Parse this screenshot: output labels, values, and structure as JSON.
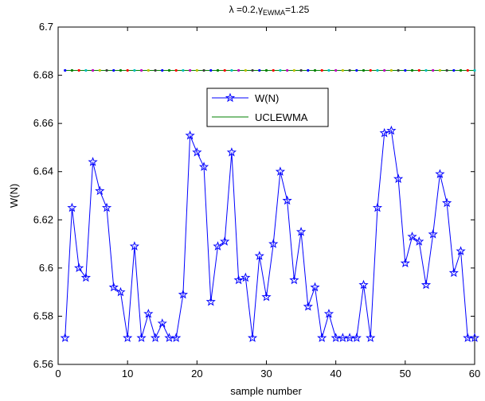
{
  "chart_data": {
    "type": "line",
    "title_parts": {
      "lambda_symbol": "λ",
      "lambda_value": " =0.2,",
      "gamma_symbol": "γ",
      "gamma_subscript": "EWMA",
      "gamma_value": "=1.25"
    },
    "xlabel": "sample number",
    "ylabel": "W(N)",
    "xlim": [
      0,
      60
    ],
    "ylim": [
      6.56,
      6.7
    ],
    "xticks": [
      0,
      10,
      20,
      30,
      40,
      50,
      60
    ],
    "xtick_labels": [
      "0",
      "10",
      "20",
      "30",
      "40",
      "50",
      "60"
    ],
    "yticks": [
      6.56,
      6.58,
      6.6,
      6.62,
      6.64,
      6.66,
      6.68,
      6.7
    ],
    "ytick_labels": [
      "6.56",
      "6.58",
      "6.6",
      "6.62",
      "6.64",
      "6.66",
      "6.68",
      "6.7"
    ],
    "grid": false,
    "legend_placement": "upper-center",
    "series": [
      {
        "name": "W(N)",
        "color": "#0000ff",
        "marker": "pentagram",
        "x": [
          1,
          2,
          3,
          4,
          5,
          6,
          7,
          8,
          9,
          10,
          11,
          12,
          13,
          14,
          15,
          16,
          17,
          18,
          19,
          20,
          21,
          22,
          23,
          24,
          25,
          26,
          27,
          28,
          29,
          30,
          31,
          32,
          33,
          34,
          35,
          36,
          37,
          38,
          39,
          40,
          41,
          42,
          43,
          44,
          45,
          46,
          47,
          48,
          49,
          50,
          51,
          52,
          53,
          54,
          55,
          56,
          57,
          58,
          59,
          60
        ],
        "values": [
          6.571,
          6.625,
          6.6,
          6.596,
          6.644,
          6.632,
          6.625,
          6.592,
          6.59,
          6.571,
          6.609,
          6.571,
          6.581,
          6.571,
          6.577,
          6.571,
          6.571,
          6.589,
          6.655,
          6.648,
          6.642,
          6.586,
          6.609,
          6.611,
          6.648,
          6.595,
          6.596,
          6.571,
          6.605,
          6.588,
          6.61,
          6.64,
          6.628,
          6.595,
          6.615,
          6.584,
          6.592,
          6.571,
          6.581,
          6.571,
          6.571,
          6.571,
          6.571,
          6.593,
          6.571,
          6.625,
          6.656,
          6.657,
          6.637,
          6.602,
          6.613,
          6.611,
          6.593,
          6.614,
          6.639,
          6.627,
          6.598,
          6.607,
          6.571,
          6.571
        ]
      },
      {
        "name": "UCLEWMA",
        "color": "#008000",
        "value": 6.682,
        "marker_colors": [
          "#0000ff",
          "#008000",
          "#ff0000",
          "#00bfbf",
          "#bf00bf",
          "#bfbf00",
          "#404040"
        ]
      }
    ]
  }
}
